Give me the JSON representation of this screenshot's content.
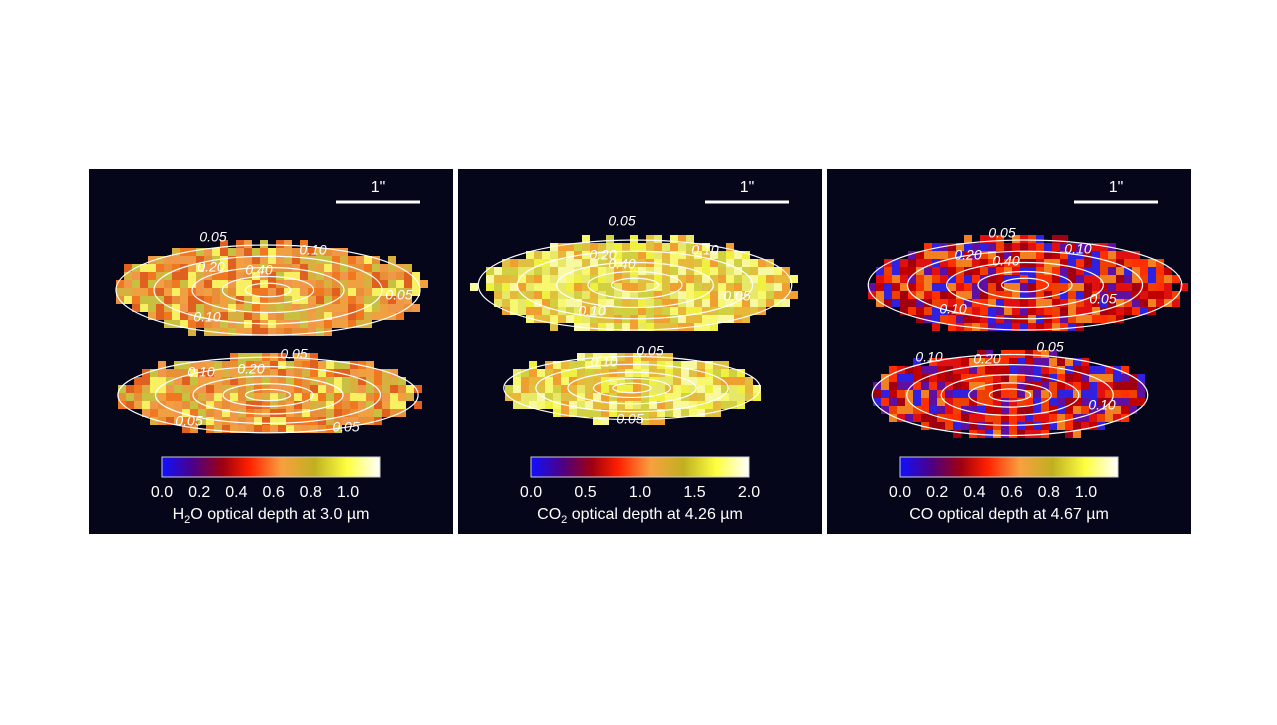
{
  "panels": [
    {
      "scale_label": "1\"",
      "colorbar_ticks": [
        "0.0",
        "0.2",
        "0.4",
        "0.6",
        "0.8",
        "1.0"
      ],
      "caption": {
        "main": "H",
        "sub": "2",
        "rest": "O optical depth at 3.0 µm"
      },
      "contour_labels": [
        "0.05",
        "0.10",
        "0.20",
        "0.40",
        "0.05",
        "0.10",
        "0.05",
        "0.10",
        "0.20",
        "0.05",
        "0.05"
      ]
    },
    {
      "scale_label": "1\"",
      "colorbar_ticks": [
        "0.0",
        "0.5",
        "1.0",
        "1.5",
        "2.0"
      ],
      "caption": {
        "main": "CO",
        "sub": "2",
        "rest": " optical depth at 4.26 µm"
      },
      "contour_labels": [
        "0.05",
        "0.20",
        "0.10",
        "0.40",
        "0.05",
        "0.10",
        "0.05",
        "0.10",
        "0.05"
      ]
    },
    {
      "scale_label": "1\"",
      "colorbar_ticks": [
        "0.0",
        "0.2",
        "0.4",
        "0.6",
        "0.8",
        "1.0"
      ],
      "caption": {
        "main": "CO optical depth at 4.67 µm"
      },
      "contour_labels": [
        "0.05",
        "0.10",
        "0.20",
        "0.40",
        "0.05",
        "0.10",
        "0.05",
        "0.10",
        "0.20",
        "0.10"
      ]
    }
  ]
}
